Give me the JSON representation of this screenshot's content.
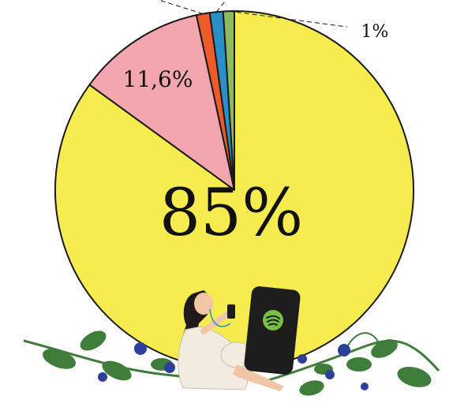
{
  "chart_data": {
    "type": "pie",
    "slices": [
      {
        "label": "85%",
        "value": 85.0,
        "color": "#f6ec4f"
      },
      {
        "label": "11,6%",
        "value": 11.6,
        "color": "#f4a6ae"
      },
      {
        "label": "",
        "value": 1.2,
        "color": "#ef5a2a"
      },
      {
        "label": "",
        "value": 1.2,
        "color": "#2a8fc6"
      },
      {
        "label": "1%",
        "value": 1.0,
        "color": "#8cba5c"
      }
    ]
  },
  "illustration": {
    "phone_logo_icon": "spotify-icon",
    "colors": {
      "leaf": "#3f7d3a",
      "flower": "#2c3f9a",
      "dress": "#f2ebe0",
      "phone": "#1d1d1d",
      "logo": "#78c043"
    }
  }
}
